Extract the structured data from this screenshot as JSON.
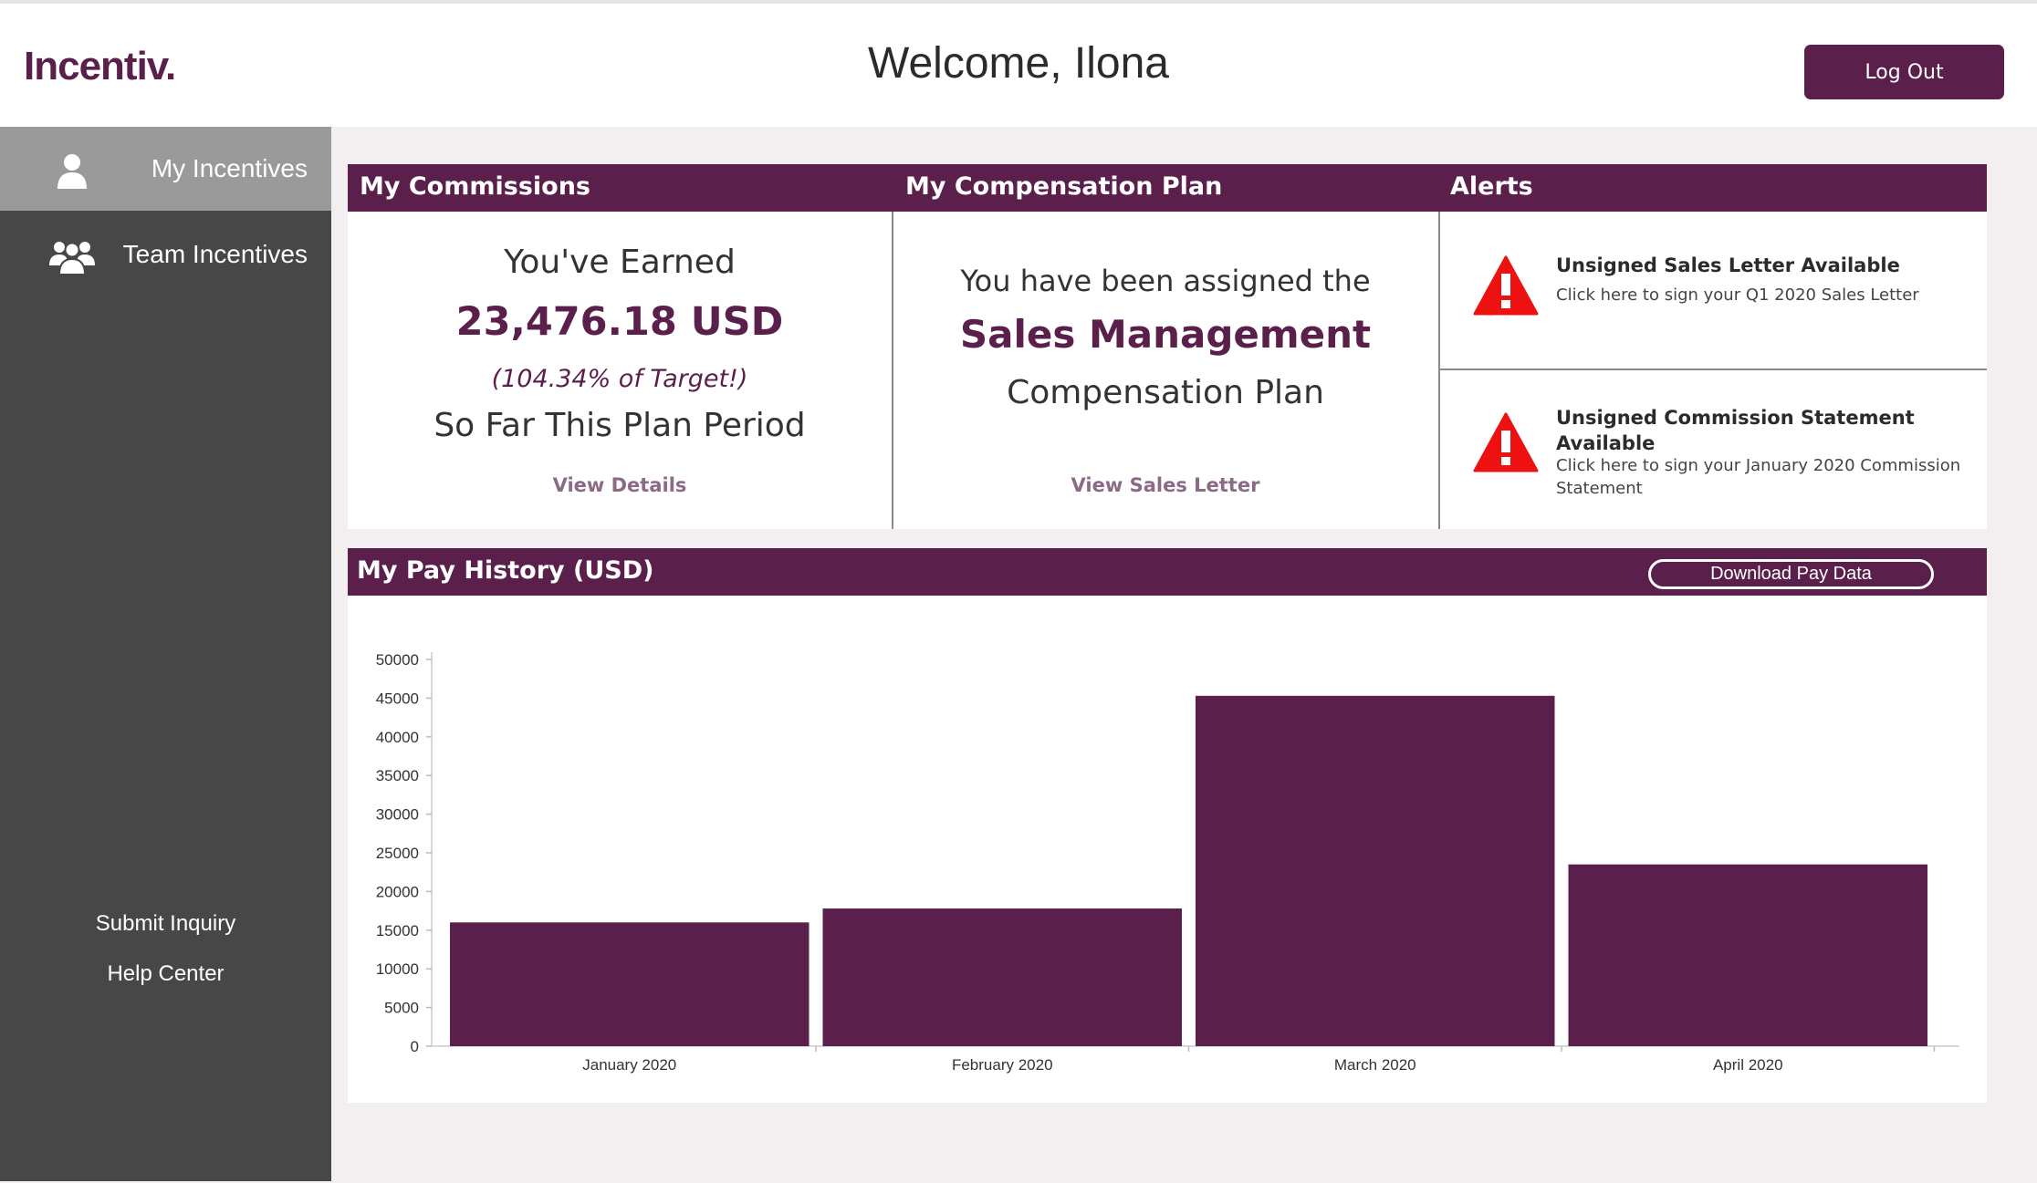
{
  "header": {
    "logo": "Incentiv.",
    "welcome": "Welcome, Ilona",
    "logout_label": "Log Out"
  },
  "sidebar": {
    "items": [
      {
        "label": "My Incentives",
        "icon": "user-icon",
        "active": true
      },
      {
        "label": "Team Incentives",
        "icon": "users-icon",
        "active": false
      }
    ],
    "links": [
      {
        "label": "Submit Inquiry"
      },
      {
        "label": "Help Center"
      }
    ]
  },
  "commissions": {
    "title": "My Commissions",
    "earned_label": "You've Earned",
    "amount": "23,476.18 USD",
    "target": "(104.34% of Target!)",
    "period": "So Far This Plan Period",
    "link": "View Details"
  },
  "plan": {
    "title": "My Compensation Plan",
    "line1": "You have been assigned the",
    "plan_name": "Sales Management",
    "line3": "Compensation Plan",
    "link": "View Sales Letter"
  },
  "alerts": {
    "title": "Alerts",
    "items": [
      {
        "icon": "warning-icon",
        "title": "Unsigned Sales Letter Available",
        "desc": "Click here to sign your Q1 2020 Sales Letter"
      },
      {
        "icon": "warning-icon",
        "title_line1": "Unsigned Commission Statement",
        "title_line2": "Available",
        "desc_line1": "Click here to sign your January 2020 Commission",
        "desc_line2": "Statement"
      }
    ]
  },
  "pay_history": {
    "title": "My Pay History (USD)",
    "download_label": "Download Pay Data"
  },
  "colors": {
    "brand": "#5b1f4c",
    "sidebar": "#474747",
    "alert": "#ee1111"
  },
  "chart_data": {
    "type": "bar",
    "categories": [
      "January 2020",
      "February 2020",
      "March 2020",
      "April 2020"
    ],
    "values": [
      16000,
      17800,
      45300,
      23500
    ],
    "ylim": [
      0,
      50000
    ],
    "yticks": [
      0,
      5000,
      10000,
      15000,
      20000,
      25000,
      30000,
      35000,
      40000,
      45000,
      50000
    ],
    "grid": false,
    "color": "#5b1f4c"
  }
}
